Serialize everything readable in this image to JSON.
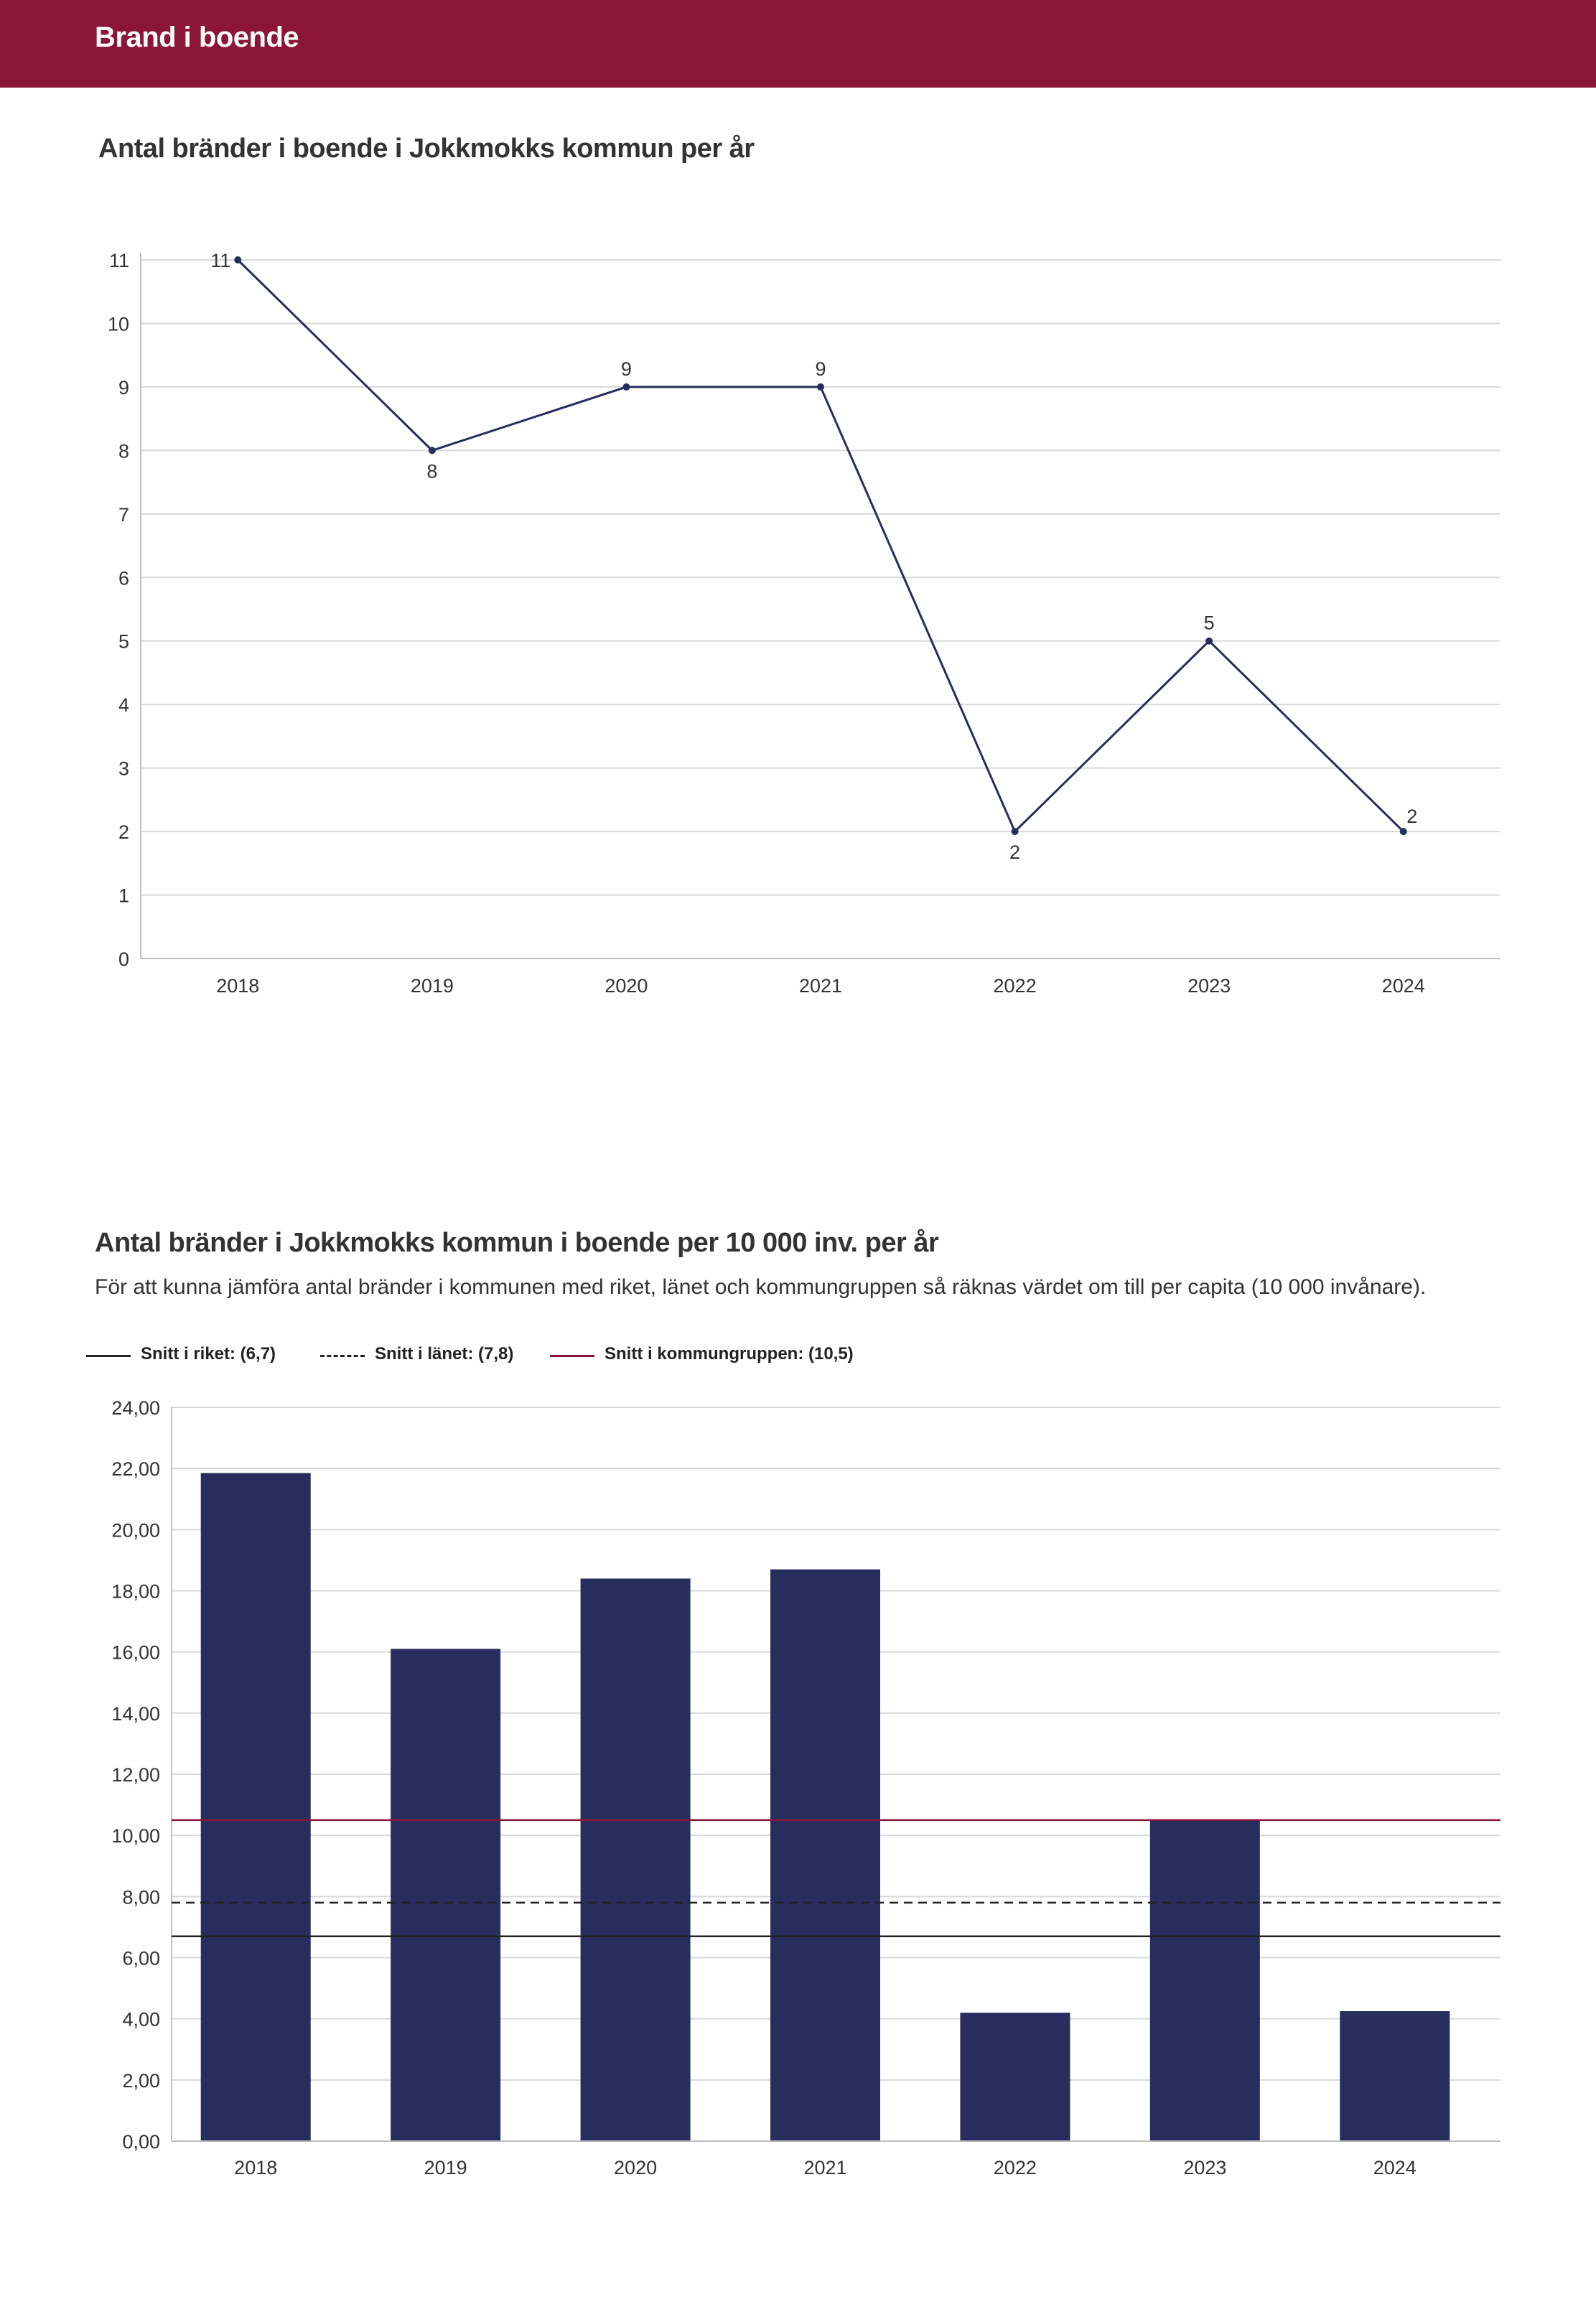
{
  "header": {
    "title": "Brand i boende"
  },
  "chart1": {
    "title": "Antal bränder i boende i Jokkmokks kommun per år"
  },
  "chart2": {
    "title": "Antal bränder i Jokkmokks kommun i boende per 10 000 inv. per år",
    "subtitle": "För att kunna jämföra antal bränder i kommunen med riket, länet och kommungruppen så räknas värdet om till per capita (10 000 invånare).",
    "legend": [
      {
        "label": "Snitt i riket: (6,7)",
        "color": "#222222",
        "style": "solid"
      },
      {
        "label": "Snitt i länet: (7,8)",
        "color": "#222222",
        "style": "dashed"
      },
      {
        "label": "Snitt i kommungruppen: (10,5)",
        "color": "#8b1538",
        "style": "solid"
      }
    ]
  },
  "chart_data": [
    {
      "type": "line",
      "title": "Antal bränder i boende i Jokkmokks kommun per år",
      "categories": [
        "2018",
        "2019",
        "2020",
        "2021",
        "2022",
        "2023",
        "2024"
      ],
      "values": [
        11,
        8,
        9,
        9,
        2,
        5,
        2
      ],
      "data_labels": [
        "11",
        "8",
        "9",
        "9",
        "2",
        "5",
        "2"
      ],
      "y_ticks": [
        "0",
        "1",
        "2",
        "3",
        "4",
        "5",
        "6",
        "7",
        "8",
        "9",
        "10",
        "11"
      ],
      "ylim": [
        0,
        11
      ],
      "line_color": "#272d5c",
      "grid": true,
      "xlabel": "",
      "ylabel": ""
    },
    {
      "type": "bar",
      "title": "Antal bränder i Jokkmokks kommun i boende per 10 000 inv. per år",
      "categories": [
        "2018",
        "2019",
        "2020",
        "2021",
        "2022",
        "2023",
        "2024"
      ],
      "values": [
        21.85,
        16.1,
        18.4,
        18.7,
        4.2,
        10.5,
        4.25
      ],
      "y_ticks": [
        "0,00",
        "2,00",
        "4,00",
        "6,00",
        "8,00",
        "10,00",
        "12,00",
        "14,00",
        "16,00",
        "18,00",
        "20,00",
        "22,00",
        "24,00"
      ],
      "ylim": [
        0,
        24
      ],
      "bar_color": "#272d5c",
      "reference_lines": [
        {
          "name": "Snitt i riket",
          "value": 6.7,
          "color": "#222222",
          "style": "solid"
        },
        {
          "name": "Snitt i länet",
          "value": 7.8,
          "color": "#222222",
          "style": "dashed"
        },
        {
          "name": "Snitt i kommungruppen",
          "value": 10.5,
          "color": "#8b1538",
          "style": "solid"
        }
      ],
      "legend_position": "top-left",
      "grid": true,
      "xlabel": "",
      "ylabel": ""
    }
  ]
}
